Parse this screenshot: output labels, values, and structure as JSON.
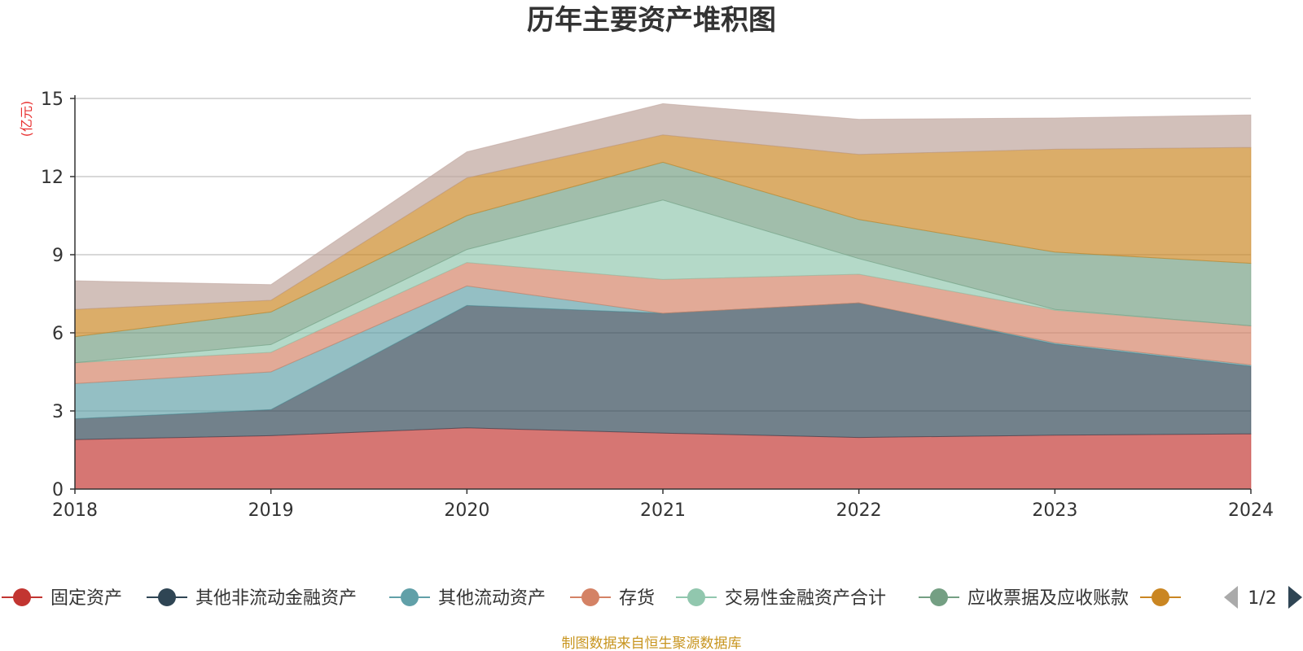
{
  "chart_data": {
    "type": "area",
    "stacked": true,
    "title": "历年主要资产堆积图",
    "unit_label": "(亿元)",
    "x": [
      "2018",
      "2019",
      "2020",
      "2021",
      "2022",
      "2023",
      "2024"
    ],
    "ylim": [
      0,
      15
    ],
    "yticks": [
      "0",
      "3",
      "6",
      "9",
      "12",
      "15"
    ],
    "grid": true,
    "series": [
      {
        "name": "固定资产",
        "color": "#c23531",
        "values": [
          1.9,
          2.05,
          2.35,
          2.15,
          1.98,
          2.07,
          2.12
        ]
      },
      {
        "name": "其他非流动金融资产",
        "color": "#2f4554",
        "values": [
          0.8,
          1.0,
          4.7,
          4.6,
          5.17,
          3.5,
          2.6
        ]
      },
      {
        "name": "其他流动资产",
        "color": "#61a0a8",
        "values": [
          1.35,
          1.45,
          0.75,
          0.0,
          0.0,
          0.05,
          0.05
        ]
      },
      {
        "name": "存货",
        "color": "#d48265",
        "values": [
          0.8,
          0.75,
          0.9,
          1.3,
          1.1,
          1.25,
          1.5
        ]
      },
      {
        "name": "交易性金融资产合计",
        "color": "#91c7ae",
        "values": [
          0.0,
          0.3,
          0.5,
          3.05,
          0.6,
          0.03,
          0.0
        ]
      },
      {
        "name": "应收票据及应收账款",
        "color": "#749f83",
        "values": [
          1.0,
          1.25,
          1.3,
          1.45,
          1.5,
          2.2,
          2.4
        ]
      },
      {
        "name": "",
        "color": "#ca8622",
        "values": [
          1.05,
          0.45,
          1.45,
          1.05,
          2.5,
          3.95,
          4.45
        ]
      },
      {
        "name": "",
        "color": "#bda29a",
        "values": [
          1.1,
          0.6,
          1.0,
          1.2,
          1.35,
          1.2,
          1.25
        ]
      }
    ],
    "legend_position": "bottom"
  },
  "legend": {
    "page_label": "1/2"
  },
  "footer": {
    "source": "制图数据来自恒生聚源数据库"
  }
}
